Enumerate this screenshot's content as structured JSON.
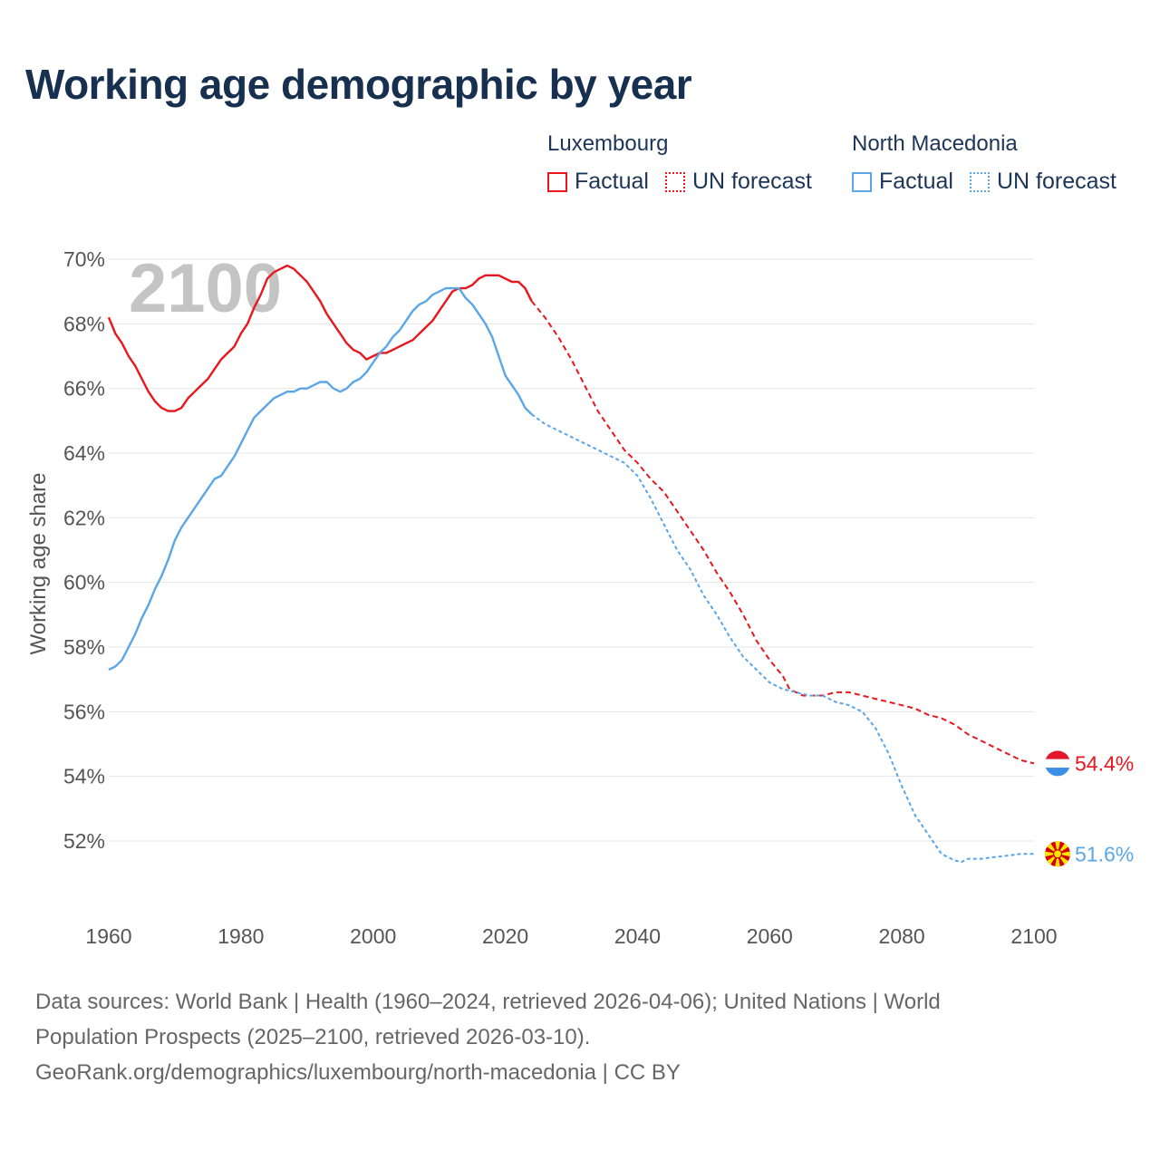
{
  "title": "Working age demographic by year",
  "legend": {
    "groups": [
      {
        "name": "Luxembourg",
        "color": "#e8161d",
        "factual_label": "Factual",
        "forecast_label": "UN forecast"
      },
      {
        "name": "North Macedonia",
        "color": "#5aa6e6",
        "factual_label": "Factual",
        "forecast_label": "UN forecast"
      }
    ]
  },
  "chart_data": {
    "type": "line",
    "title": "Working age demographic by year",
    "xlabel": "",
    "ylabel": "Working age share",
    "xlim": [
      1960,
      2100
    ],
    "ylim": [
      50.5,
      70.5
    ],
    "x_ticks": [
      1960,
      1980,
      2000,
      2020,
      2040,
      2060,
      2080,
      2100
    ],
    "y_ticks": [
      52,
      54,
      56,
      58,
      60,
      62,
      64,
      66,
      68,
      70
    ],
    "y_tick_format": "%",
    "grid": true,
    "year_watermark": "2100",
    "end_labels": [
      {
        "series": "Luxembourg",
        "value_label": "54.4%",
        "flag": "flag-luxembourg-icon"
      },
      {
        "series": "North Macedonia",
        "value_label": "51.6%",
        "flag": "flag-north-macedonia-icon"
      }
    ],
    "series": [
      {
        "name": "Luxembourg",
        "color": "#e8161d",
        "factual": {
          "x": [
            1960,
            1961,
            1962,
            1963,
            1964,
            1965,
            1966,
            1967,
            1968,
            1969,
            1970,
            1971,
            1972,
            1973,
            1974,
            1975,
            1976,
            1977,
            1978,
            1979,
            1980,
            1981,
            1982,
            1983,
            1984,
            1985,
            1986,
            1987,
            1988,
            1989,
            1990,
            1991,
            1992,
            1993,
            1994,
            1995,
            1996,
            1997,
            1998,
            1999,
            2000,
            2001,
            2002,
            2003,
            2004,
            2005,
            2006,
            2007,
            2008,
            2009,
            2010,
            2011,
            2012,
            2013,
            2014,
            2015,
            2016,
            2017,
            2018,
            2019,
            2020,
            2021,
            2022,
            2023,
            2024
          ],
          "y": [
            68.2,
            67.7,
            67.4,
            67.0,
            66.7,
            66.3,
            65.9,
            65.6,
            65.4,
            65.3,
            65.3,
            65.4,
            65.7,
            65.9,
            66.1,
            66.3,
            66.6,
            66.9,
            67.1,
            67.3,
            67.7,
            68.0,
            68.5,
            68.9,
            69.4,
            69.6,
            69.7,
            69.8,
            69.7,
            69.5,
            69.3,
            69.0,
            68.7,
            68.3,
            68.0,
            67.7,
            67.4,
            67.2,
            67.1,
            66.9,
            67.0,
            67.1,
            67.1,
            67.2,
            67.3,
            67.4,
            67.5,
            67.7,
            67.9,
            68.1,
            68.4,
            68.7,
            69.0,
            69.1,
            69.1,
            69.2,
            69.4,
            69.5,
            69.5,
            69.5,
            69.4,
            69.3,
            69.3,
            69.1,
            68.7
          ],
          "dash": "solid"
        },
        "forecast": {
          "x": [
            2024,
            2026,
            2028,
            2030,
            2032,
            2034,
            2036,
            2038,
            2040,
            2042,
            2044,
            2046,
            2048,
            2050,
            2052,
            2054,
            2056,
            2058,
            2060,
            2062,
            2063,
            2065,
            2068,
            2070,
            2072,
            2074,
            2076,
            2078,
            2080,
            2082,
            2084,
            2086,
            2088,
            2090,
            2092,
            2094,
            2096,
            2098,
            2100
          ],
          "y": [
            68.7,
            68.2,
            67.6,
            66.9,
            66.1,
            65.3,
            64.7,
            64.1,
            63.7,
            63.2,
            62.8,
            62.2,
            61.6,
            61.0,
            60.3,
            59.7,
            59.0,
            58.2,
            57.6,
            57.1,
            56.7,
            56.5,
            56.5,
            56.6,
            56.6,
            56.5,
            56.4,
            56.3,
            56.2,
            56.1,
            55.9,
            55.8,
            55.6,
            55.3,
            55.1,
            54.9,
            54.7,
            54.5,
            54.4
          ],
          "dash": "dashed"
        }
      },
      {
        "name": "North Macedonia",
        "color": "#5aa6e6",
        "factual": {
          "x": [
            1960,
            1961,
            1962,
            1963,
            1964,
            1965,
            1966,
            1967,
            1968,
            1969,
            1970,
            1971,
            1972,
            1973,
            1974,
            1975,
            1976,
            1977,
            1978,
            1979,
            1980,
            1981,
            1982,
            1983,
            1984,
            1985,
            1986,
            1987,
            1988,
            1989,
            1990,
            1991,
            1992,
            1993,
            1994,
            1995,
            1996,
            1997,
            1998,
            1999,
            2000,
            2001,
            2002,
            2003,
            2004,
            2005,
            2006,
            2007,
            2008,
            2009,
            2010,
            2011,
            2012,
            2013,
            2014,
            2015,
            2016,
            2017,
            2018,
            2019,
            2020,
            2021,
            2022,
            2023,
            2024
          ],
          "y": [
            57.3,
            57.4,
            57.6,
            58.0,
            58.4,
            58.9,
            59.3,
            59.8,
            60.2,
            60.7,
            61.3,
            61.7,
            62.0,
            62.3,
            62.6,
            62.9,
            63.2,
            63.3,
            63.6,
            63.9,
            64.3,
            64.7,
            65.1,
            65.3,
            65.5,
            65.7,
            65.8,
            65.9,
            65.9,
            66.0,
            66.0,
            66.1,
            66.2,
            66.2,
            66.0,
            65.9,
            66.0,
            66.2,
            66.3,
            66.5,
            66.8,
            67.1,
            67.3,
            67.6,
            67.8,
            68.1,
            68.4,
            68.6,
            68.7,
            68.9,
            69.0,
            69.1,
            69.1,
            69.1,
            68.8,
            68.6,
            68.3,
            68.0,
            67.6,
            67.0,
            66.4,
            66.1,
            65.8,
            65.4,
            65.2
          ],
          "dash": "solid"
        },
        "forecast": {
          "x": [
            2024,
            2026,
            2028,
            2030,
            2032,
            2034,
            2036,
            2038,
            2040,
            2042,
            2044,
            2046,
            2048,
            2050,
            2052,
            2054,
            2056,
            2058,
            2060,
            2062,
            2064,
            2066,
            2068,
            2070,
            2072,
            2074,
            2076,
            2078,
            2080,
            2082,
            2084,
            2086,
            2088,
            2089,
            2090,
            2092,
            2094,
            2096,
            2098,
            2100
          ],
          "y": [
            65.2,
            64.9,
            64.7,
            64.5,
            64.3,
            64.1,
            63.9,
            63.7,
            63.3,
            62.6,
            61.8,
            61.0,
            60.4,
            59.6,
            59.0,
            58.3,
            57.7,
            57.3,
            56.9,
            56.7,
            56.6,
            56.5,
            56.5,
            56.3,
            56.2,
            56.0,
            55.5,
            54.7,
            53.7,
            52.8,
            52.2,
            51.6,
            51.4,
            51.35,
            51.45,
            51.45,
            51.5,
            51.55,
            51.6,
            51.6
          ],
          "dash": "dotted"
        }
      }
    ]
  },
  "sources": {
    "line1": "Data sources: World Bank | Health (1960–2024, retrieved 2026-04-06); United Nations | World",
    "line2": "Population Prospects (2025–2100, retrieved 2026-03-10).",
    "line3": "GeoRank.org/demographics/luxembourg/north-macedonia | CC BY"
  }
}
